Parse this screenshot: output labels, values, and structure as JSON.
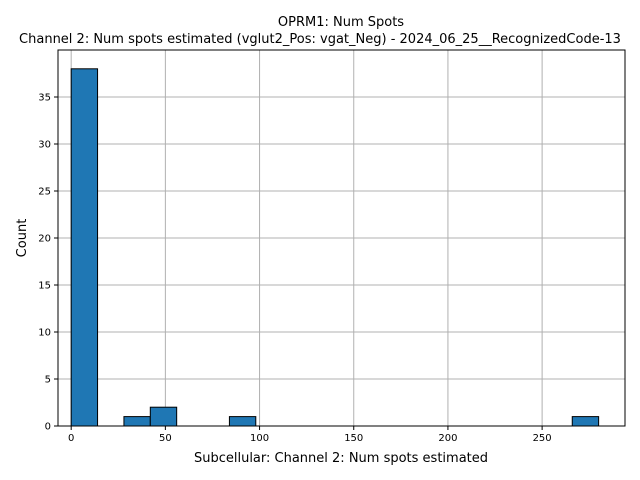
{
  "chart_data": {
    "type": "bar",
    "title": "OPRM1: Num Spots",
    "subtitle": "Channel 2: Num spots estimated (vglut2_Pos: vgat_Neg) - 2024_06_25__RecognizedCode-13",
    "xlabel": "Subcellular: Channel 2: Num spots estimated",
    "ylabel": "Count",
    "xlim": [
      -7,
      294
    ],
    "ylim": [
      0,
      40
    ],
    "x_ticks": [
      0,
      50,
      100,
      150,
      200,
      250
    ],
    "y_ticks": [
      0,
      5,
      10,
      15,
      20,
      25,
      30,
      35
    ],
    "grid": true,
    "bar_color": "#1f77b4",
    "bar_edge_color": "#000000",
    "bins": [
      {
        "x0": 0,
        "x1": 14,
        "count": 38
      },
      {
        "x0": 28,
        "x1": 42,
        "count": 1
      },
      {
        "x0": 42,
        "x1": 56,
        "count": 2
      },
      {
        "x0": 84,
        "x1": 98,
        "count": 1
      },
      {
        "x0": 266,
        "x1": 280,
        "count": 1
      }
    ]
  }
}
